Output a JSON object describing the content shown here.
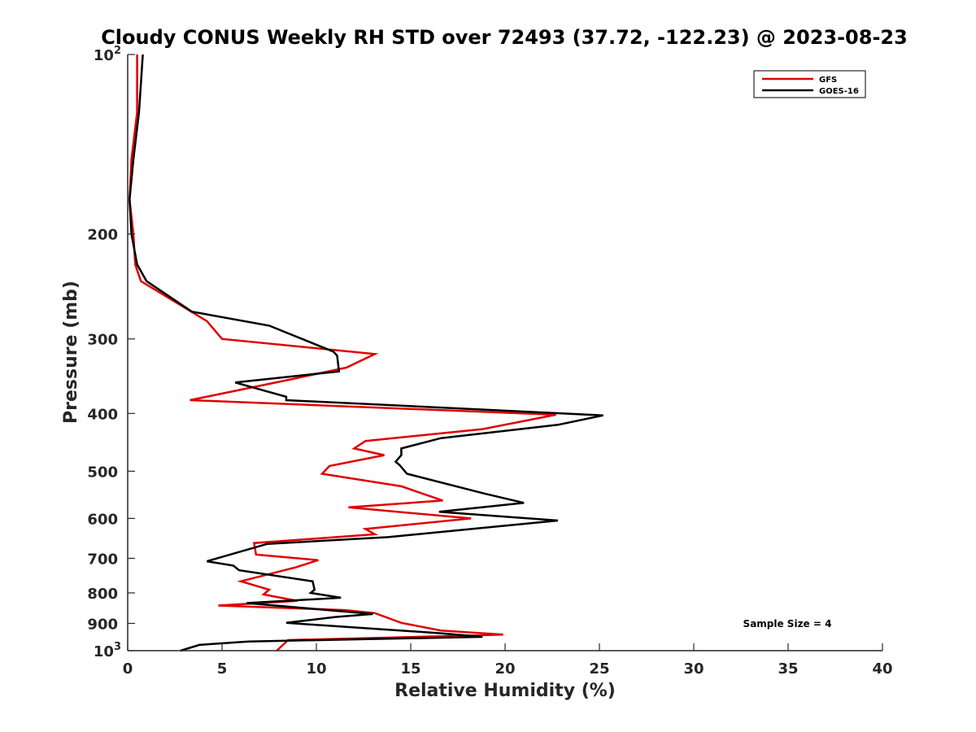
{
  "chart_data": {
    "type": "line",
    "title": "Cloudy CONUS Weekly RH STD over 72493 (37.72, -122.23) @ 2023-08-23",
    "xlabel": "Relative Humidity (%)",
    "ylabel": "Pressure (mb)",
    "xlim": [
      0,
      40
    ],
    "ylim": [
      100,
      1000
    ],
    "yscale": "log",
    "y_reversed": true,
    "x_ticks": [
      0,
      5,
      10,
      15,
      20,
      25,
      30,
      35,
      40
    ],
    "y_ticks": [
      {
        "value": 100,
        "label": "10",
        "sup": "2"
      },
      {
        "value": 200,
        "label": "200",
        "sup": ""
      },
      {
        "value": 300,
        "label": "300",
        "sup": ""
      },
      {
        "value": 400,
        "label": "400",
        "sup": ""
      },
      {
        "value": 500,
        "label": "500",
        "sup": ""
      },
      {
        "value": 600,
        "label": "600",
        "sup": ""
      },
      {
        "value": 700,
        "label": "700",
        "sup": ""
      },
      {
        "value": 800,
        "label": "800",
        "sup": ""
      },
      {
        "value": 900,
        "label": "900",
        "sup": ""
      },
      {
        "value": 1000,
        "label": "10",
        "sup": "3"
      }
    ],
    "grid": false,
    "legend_position": "top-right",
    "series": [
      {
        "name": "GFS",
        "color": "#e00000",
        "points": [
          [
            0.5,
            100
          ],
          [
            0.5,
            125
          ],
          [
            0.2,
            150
          ],
          [
            0.1,
            175
          ],
          [
            0.3,
            200
          ],
          [
            0.4,
            225
          ],
          [
            0.7,
            240
          ],
          [
            4.2,
            280
          ],
          [
            5.0,
            300
          ],
          [
            13.1,
            318
          ],
          [
            11.6,
            335
          ],
          [
            8.4,
            352
          ],
          [
            3.3,
            380
          ],
          [
            22.7,
            402
          ],
          [
            18.8,
            425
          ],
          [
            12.6,
            445
          ],
          [
            12.0,
            458
          ],
          [
            13.6,
            470
          ],
          [
            10.7,
            490
          ],
          [
            10.3,
            505
          ],
          [
            14.5,
            530
          ],
          [
            16.7,
            560
          ],
          [
            11.7,
            575
          ],
          [
            18.2,
            600
          ],
          [
            12.6,
            625
          ],
          [
            13.1,
            638
          ],
          [
            6.7,
            660
          ],
          [
            6.8,
            690
          ],
          [
            10.1,
            705
          ],
          [
            8.9,
            725
          ],
          [
            6.0,
            765
          ],
          [
            7.5,
            790
          ],
          [
            7.2,
            805
          ],
          [
            9.0,
            825
          ],
          [
            4.8,
            840
          ],
          [
            11.5,
            855
          ],
          [
            13.1,
            865
          ],
          [
            14.5,
            898
          ],
          [
            16.6,
            925
          ],
          [
            19.9,
            940
          ],
          [
            8.5,
            960
          ],
          [
            7.9,
            1000
          ]
        ]
      },
      {
        "name": "GOES-16",
        "color": "#000000",
        "points": [
          [
            0.8,
            100
          ],
          [
            0.6,
            125
          ],
          [
            0.3,
            150
          ],
          [
            0.1,
            175
          ],
          [
            0.2,
            200
          ],
          [
            0.5,
            225
          ],
          [
            1.0,
            240
          ],
          [
            3.4,
            270
          ],
          [
            7.5,
            285
          ],
          [
            10.9,
            315
          ],
          [
            11.1,
            320
          ],
          [
            11.2,
            340
          ],
          [
            5.7,
            355
          ],
          [
            8.4,
            375
          ],
          [
            8.4,
            380
          ],
          [
            25.2,
            403
          ],
          [
            22.8,
            418
          ],
          [
            16.6,
            440
          ],
          [
            14.5,
            458
          ],
          [
            14.5,
            470
          ],
          [
            14.2,
            482
          ],
          [
            14.4,
            488
          ],
          [
            14.8,
            505
          ],
          [
            18.9,
            545
          ],
          [
            21.0,
            565
          ],
          [
            16.5,
            585
          ],
          [
            22.8,
            605
          ],
          [
            13.8,
            645
          ],
          [
            7.4,
            662
          ],
          [
            4.2,
            708
          ],
          [
            5.6,
            720
          ],
          [
            5.9,
            733
          ],
          [
            9.8,
            765
          ],
          [
            9.9,
            790
          ],
          [
            9.7,
            800
          ],
          [
            11.3,
            815
          ],
          [
            6.3,
            832
          ],
          [
            13.0,
            868
          ],
          [
            11.0,
            878
          ],
          [
            8.4,
            898
          ],
          [
            16.6,
            935
          ],
          [
            18.8,
            948
          ],
          [
            6.4,
            965
          ],
          [
            3.8,
            978
          ],
          [
            2.8,
            1000
          ]
        ]
      }
    ],
    "annotations": [
      {
        "text": "Sample Size = 4"
      }
    ]
  }
}
